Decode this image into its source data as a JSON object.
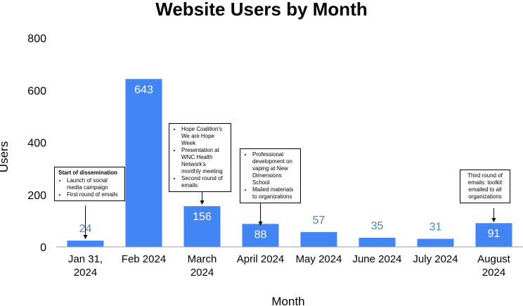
{
  "chart_data": {
    "type": "bar",
    "title": "Website Users by Month",
    "xlabel": "Month",
    "ylabel": "Users",
    "ylim": [
      0,
      800
    ],
    "yticks": [
      0,
      200,
      400,
      600,
      800
    ],
    "categories": [
      "Jan 31, 2024",
      "Feb 2024",
      "March 2024",
      "April 2024",
      "May 2024",
      "June 2024",
      "July 2024",
      "August 2024"
    ],
    "values": [
      24,
      643,
      156,
      88,
      57,
      35,
      31,
      91
    ],
    "data_labels": [
      "24",
      "643",
      "156",
      "88",
      "57",
      "35",
      "31",
      "91"
    ],
    "bar_color": "#4285f4",
    "label_outside_color": "#4a86c8",
    "label_inside_color": "#ffffff",
    "grid": false,
    "annotations": [
      {
        "category_index": 0,
        "title": "Start of dissemination",
        "items": [
          "Launch of social media campaign",
          "First round of emails"
        ]
      },
      {
        "category_index": 2,
        "title": "",
        "items": [
          "Hope Coalition's We are Hope Week",
          "Presentation at WNC Health Network's monthly meeting",
          "Second round of emails"
        ]
      },
      {
        "category_index": 3,
        "title": "",
        "items": [
          "Professional development on vaping at New Dimensions School",
          "Mailed materials to organizations"
        ]
      },
      {
        "category_index": 7,
        "title": "",
        "items": [
          "Third round of emails: toolkit emailed to all organizations"
        ]
      }
    ]
  }
}
